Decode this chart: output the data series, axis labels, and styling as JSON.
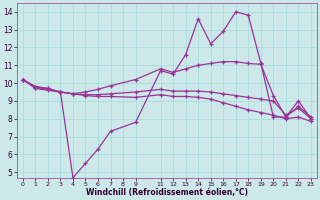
{
  "xlabel": "Windchill (Refroidissement éolien,°C)",
  "background_color": "#cce8e8",
  "line_color": "#993399",
  "grid_color": "#aadddd",
  "xlim": [
    -0.5,
    23.5
  ],
  "ylim": [
    4.7,
    14.5
  ],
  "xticks": [
    0,
    1,
    2,
    3,
    4,
    5,
    6,
    7,
    8,
    9,
    11,
    12,
    13,
    14,
    15,
    16,
    17,
    18,
    19,
    20,
    21,
    22,
    23
  ],
  "yticks": [
    5,
    6,
    7,
    8,
    9,
    10,
    11,
    12,
    13,
    14
  ],
  "series": [
    {
      "x": [
        0,
        1,
        2,
        3,
        4,
        5,
        6,
        7,
        9,
        11,
        12,
        13,
        14,
        15,
        16,
        17,
        18,
        19,
        20,
        21,
        22,
        23
      ],
      "y": [
        10.2,
        9.8,
        9.7,
        9.5,
        4.7,
        5.5,
        6.3,
        7.3,
        7.8,
        10.7,
        10.5,
        11.6,
        13.6,
        12.2,
        12.9,
        14.0,
        13.8,
        11.1,
        8.1,
        8.1,
        9.0,
        8.0
      ]
    },
    {
      "x": [
        0,
        1,
        2,
        3,
        4,
        5,
        6,
        7,
        9,
        11,
        12,
        13,
        14,
        15,
        16,
        17,
        18,
        19,
        20,
        21,
        22,
        23
      ],
      "y": [
        10.2,
        9.8,
        9.7,
        9.5,
        9.4,
        9.5,
        9.65,
        9.85,
        10.2,
        10.8,
        10.6,
        10.8,
        11.0,
        11.1,
        11.2,
        11.2,
        11.1,
        11.05,
        9.3,
        8.1,
        8.7,
        8.1
      ]
    },
    {
      "x": [
        0,
        1,
        2,
        3,
        4,
        5,
        6,
        7,
        9,
        11,
        12,
        13,
        14,
        15,
        16,
        17,
        18,
        19,
        20,
        21,
        22,
        23
      ],
      "y": [
        10.2,
        9.75,
        9.65,
        9.5,
        9.4,
        9.35,
        9.35,
        9.4,
        9.5,
        9.65,
        9.55,
        9.55,
        9.55,
        9.5,
        9.4,
        9.3,
        9.2,
        9.1,
        9.0,
        8.2,
        8.6,
        8.0
      ]
    },
    {
      "x": [
        0,
        1,
        2,
        3,
        4,
        5,
        6,
        7,
        9,
        11,
        12,
        13,
        14,
        15,
        16,
        17,
        18,
        19,
        20,
        21,
        22,
        23
      ],
      "y": [
        10.2,
        9.7,
        9.6,
        9.5,
        9.4,
        9.3,
        9.25,
        9.25,
        9.2,
        9.35,
        9.25,
        9.25,
        9.2,
        9.1,
        8.9,
        8.7,
        8.5,
        8.35,
        8.2,
        8.0,
        8.1,
        7.85
      ]
    }
  ]
}
